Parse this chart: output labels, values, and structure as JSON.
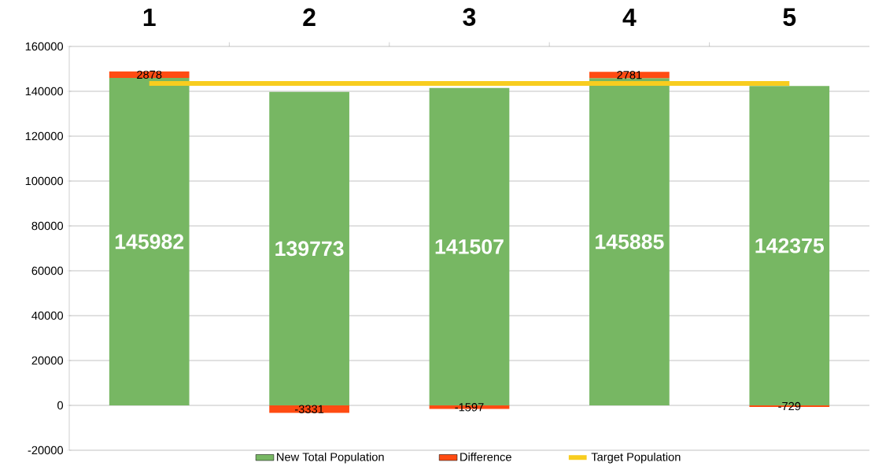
{
  "chart_data": {
    "type": "bar",
    "stacked": true,
    "categories": [
      "1",
      "2",
      "3",
      "4",
      "5"
    ],
    "series": [
      {
        "name": "New Total Population",
        "color": "#77b763",
        "values": [
          145982,
          139773,
          141507,
          145885,
          142375
        ],
        "value_labels": [
          "145982",
          "139773",
          "141507",
          "145885",
          "142375"
        ]
      },
      {
        "name": "Difference",
        "color": "#ff4b12",
        "values": [
          2878,
          -3331,
          -1597,
          2781,
          -729
        ],
        "value_labels": [
          "2878",
          "-3331",
          "-1597",
          "2781",
          "-729"
        ]
      },
      {
        "name": "Target Population",
        "type": "line",
        "color": "#f8cd1f",
        "values": [
          143500,
          143500,
          143500,
          143500,
          143500
        ]
      }
    ],
    "ylim": [
      -20000,
      160000
    ],
    "yticks": [
      -20000,
      0,
      20000,
      40000,
      60000,
      80000,
      100000,
      120000,
      140000,
      160000
    ],
    "grid": "y",
    "legend": "bottom"
  }
}
